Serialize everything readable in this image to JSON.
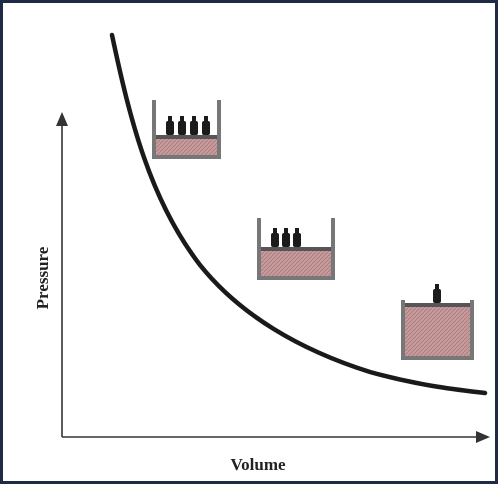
{
  "axes": {
    "y_label": "Pressure",
    "x_label": "Volume"
  }
}
